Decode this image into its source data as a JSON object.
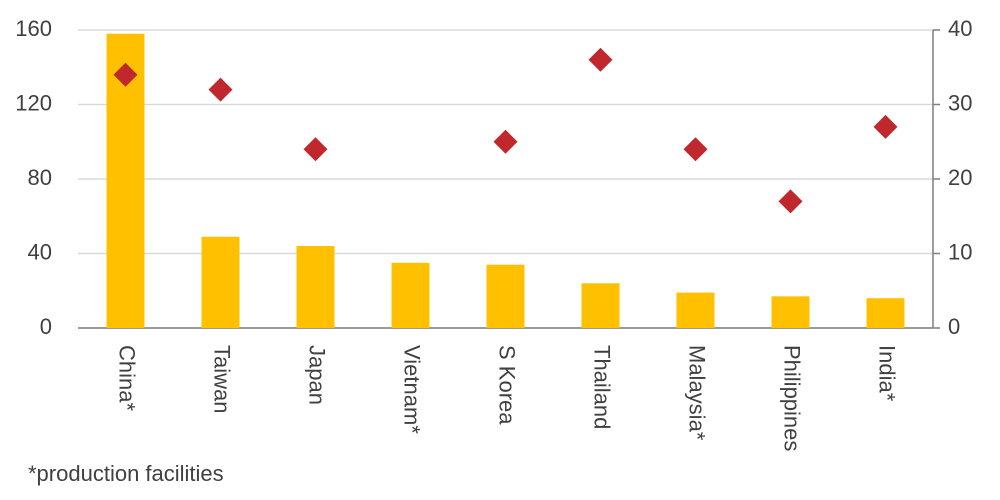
{
  "chart_data": {
    "type": "bar",
    "categories": [
      "China*",
      "Taiwan",
      "Japan",
      "Vietnam*",
      "S Korea",
      "Thailand",
      "Malaysia*",
      "Philippines",
      "India*"
    ],
    "series": [
      {
        "type": "bar",
        "color": "#FFC000",
        "values": [
          158,
          49,
          44,
          35,
          34,
          24,
          19,
          17,
          16
        ]
      },
      {
        "type": "scatter",
        "marker": "diamond",
        "axis": "y2",
        "color": "#C0282D",
        "values": [
          34,
          32,
          24,
          null,
          25,
          36,
          24,
          17,
          27
        ]
      }
    ],
    "ylim": [
      0,
      160
    ],
    "yticks": [
      0,
      40,
      80,
      120,
      160
    ],
    "y2lim": [
      0,
      40
    ],
    "y2ticks": [
      0,
      10,
      20,
      30,
      40
    ],
    "grid": true,
    "note": "*production facilities"
  }
}
